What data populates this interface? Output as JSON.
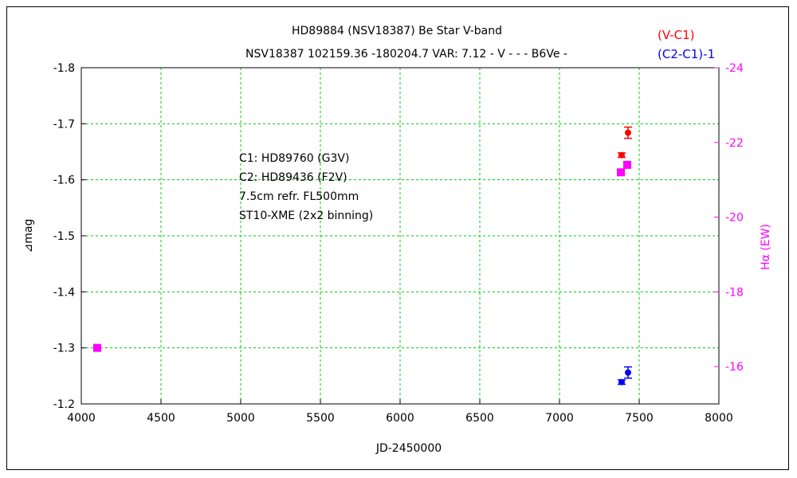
{
  "chart_data": {
    "type": "scatter",
    "title": "HD89884 (NSV18387)    Be Star    V-band",
    "subtitle": "NSV18387 102159.36 -180204.7 VAR: 7.12 - V - - - B6Ve -",
    "xlabel": "JD-2450000",
    "ylabel": "⊿mag",
    "y2label": "Hα (EW)",
    "xlim": [
      4000,
      8000
    ],
    "ylim": [
      -1.2,
      -1.8
    ],
    "y2lim": [
      -15,
      -24
    ],
    "xticks": [
      "4000",
      "4500",
      "5000",
      "5500",
      "6000",
      "6500",
      "7000",
      "7500",
      "8000"
    ],
    "yticks": [
      "-1.8",
      "-1.7",
      "-1.6",
      "-1.5",
      "-1.4",
      "-1.3",
      "-1.2"
    ],
    "y2ticks": [
      "-24",
      "-22",
      "-20",
      "-18",
      "-16"
    ],
    "grid": true,
    "legend_position": "top-right",
    "annotation": [
      "C1: HD89760 (G3V)",
      "C2: HD89436 (F2V)",
      "7.5cm refr. FL500mm",
      "ST10-XME (2x2 binning)"
    ],
    "series": [
      {
        "name": "(V-C1)",
        "axis": "left",
        "color": "#ff0000",
        "marker": "circle",
        "points": [
          {
            "x": 7390,
            "y": -1.644,
            "err": 0.004
          },
          {
            "x": 7430,
            "y": -1.684,
            "err": 0.01
          }
        ]
      },
      {
        "name": "(C2-C1)-1",
        "axis": "left",
        "color": "#0000ff",
        "marker": "circle",
        "points": [
          {
            "x": 7390,
            "y": -1.239,
            "err": 0.004
          },
          {
            "x": 7430,
            "y": -1.256,
            "err": 0.01
          }
        ]
      },
      {
        "name": "",
        "axis": "right",
        "color": "#ff00ff",
        "marker": "square",
        "points": [
          {
            "x": 4100,
            "y": -16.5
          },
          {
            "x": 7385,
            "y": -21.2
          },
          {
            "x": 7425,
            "y": -21.4
          }
        ]
      }
    ]
  }
}
